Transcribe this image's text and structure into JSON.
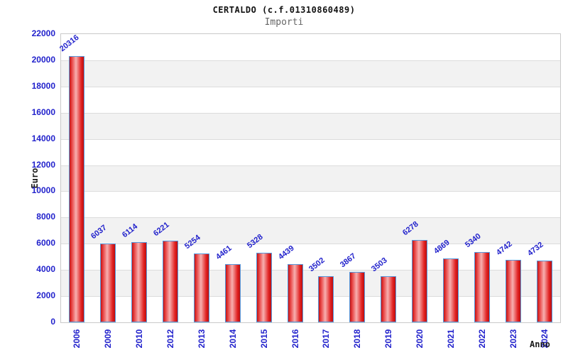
{
  "header": {
    "title": "CERTALDO (c.f.01310860489)",
    "subtitle": "Importi"
  },
  "chart_data": {
    "type": "bar",
    "title": "CERTALDO (c.f.01310860489)",
    "subtitle": "Importi",
    "xlabel": "Anno",
    "ylabel": "Euro",
    "categories": [
      "2006",
      "2009",
      "2010",
      "2012",
      "2013",
      "2014",
      "2015",
      "2016",
      "2017",
      "2018",
      "2019",
      "2020",
      "2021",
      "2022",
      "2023",
      "2024"
    ],
    "values": [
      20316,
      6037,
      6114,
      6221,
      5254,
      4461,
      5328,
      4439,
      3502,
      3867,
      3503,
      6278,
      4869,
      5340,
      4742,
      4732
    ],
    "value_labels": [
      "20316",
      "6037",
      "6114",
      "6221",
      "5254",
      "4461",
      "5328",
      "4439",
      "3502",
      "3867",
      "3503",
      "6278",
      "4869",
      "5340",
      "4742",
      "4732"
    ],
    "ylim": [
      0,
      22000
    ],
    "ytick_step": 2000,
    "ytick_labels": [
      "0",
      "2000",
      "4000",
      "6000",
      "8000",
      "10000",
      "12000",
      "14000",
      "16000",
      "18000",
      "20000",
      "22000"
    ],
    "grid": "horizontal alternating bands every 2000, gridlines at each tick",
    "legend": "none",
    "bar_label_rotation_deg": -38,
    "xtick_rotation_deg": -90
  },
  "colors": {
    "background": "#ffffff",
    "title_text": "#111111",
    "subtitle_text": "#666666",
    "axis_label_text": "#1a1a1a",
    "tick_label_blue": "#2222cc",
    "value_label_blue": "#2222cc",
    "plot_border": "#c9c9c9",
    "grid_line": "#dcdcdc",
    "band_gray": "#f2f2f2",
    "band_white": "#ffffff",
    "bar_border_blue": "#5599dd",
    "bar_gradient_stops": [
      "#c61212 0%",
      "#ea4b4b 18%",
      "#f7b0b0 45%",
      "#e12222 82%",
      "#bd0e0e 100%"
    ]
  }
}
